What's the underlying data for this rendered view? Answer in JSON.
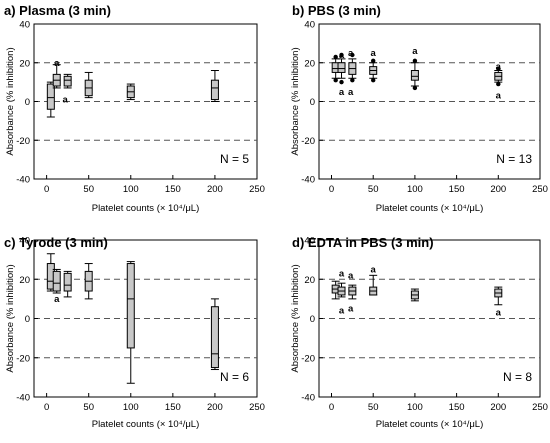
{
  "figure": {
    "panels": [
      {
        "id": "a",
        "title": "a) Plasma (3 min)",
        "n_label": "N = 5",
        "ylabel": "Absorbance (% inhibition)",
        "xlabel": "Platelet counts (× 10⁴/μL)",
        "letters": [
          {
            "x": 12,
            "y": 20,
            "text": "a"
          },
          {
            "x": 22,
            "y": 1,
            "text": "a"
          }
        ]
      },
      {
        "id": "b",
        "title": "b) PBS (3 min)",
        "n_label": "N = 13",
        "ylabel": "Absorbance (% inhibition)",
        "xlabel": "Platelet counts (× 10⁴/μL)",
        "letters": [
          {
            "x": 12,
            "y": 24,
            "text": "a"
          },
          {
            "x": 23,
            "y": 25,
            "text": "a"
          },
          {
            "x": 50,
            "y": 25,
            "text": "a"
          },
          {
            "x": 100,
            "y": 26,
            "text": "a"
          },
          {
            "x": 200,
            "y": 18,
            "text": "a"
          },
          {
            "x": 12,
            "y": 5,
            "text": "a"
          },
          {
            "x": 23,
            "y": 5,
            "text": "a"
          },
          {
            "x": 200,
            "y": 3,
            "text": "a"
          }
        ]
      },
      {
        "id": "c",
        "title": "c) Tyrode (3 min)",
        "n_label": "N = 6",
        "ylabel": "Absorbance (% inhibition)",
        "xlabel": "Platelet counts (× 10⁴/μL)",
        "letters": [
          {
            "x": 12,
            "y": 10,
            "text": "a"
          }
        ]
      },
      {
        "id": "d",
        "title": "d) EDTA in PBS (3 min)",
        "n_label": "N = 8",
        "ylabel": "Absorbance (% inhibition)",
        "xlabel": "Platelet counts (× 10⁴/μL)",
        "letters": [
          {
            "x": 12,
            "y": 23,
            "text": "a"
          },
          {
            "x": 23,
            "y": 22,
            "text": "a"
          },
          {
            "x": 50,
            "y": 25,
            "text": "a"
          },
          {
            "x": 12,
            "y": 4,
            "text": "a"
          },
          {
            "x": 23,
            "y": 5,
            "text": "a"
          },
          {
            "x": 200,
            "y": 3,
            "text": "a"
          }
        ]
      }
    ]
  },
  "chart_data": [
    {
      "type": "box",
      "title": "a) Plasma (3 min)",
      "xlabel": "Platelet counts (× 10⁴/μL)",
      "ylabel": "Absorbance (% inhibition)",
      "xlim": [
        -15,
        250
      ],
      "ylim": [
        -40,
        40
      ],
      "xticks": [
        0,
        50,
        100,
        150,
        200,
        250
      ],
      "yticks": [
        -40,
        -20,
        0,
        20,
        40
      ],
      "reference_lines": [
        20,
        0,
        -20
      ],
      "grid": false,
      "boxes": [
        {
          "x": 5,
          "whisker_low": -8,
          "q1": -4,
          "median": 2,
          "q3": 9,
          "whisker_high": 10
        },
        {
          "x": 12,
          "whisker_low": 7,
          "q1": 8,
          "median": 11,
          "q3": 14,
          "whisker_high": 19
        },
        {
          "x": 25,
          "whisker_low": 7,
          "q1": 8,
          "median": 11,
          "q3": 13,
          "whisker_high": 14
        },
        {
          "x": 50,
          "whisker_low": 2,
          "q1": 3,
          "median": 7,
          "q3": 11,
          "whisker_high": 15
        },
        {
          "x": 100,
          "whisker_low": 1,
          "q1": 2,
          "median": 5,
          "q3": 8,
          "whisker_high": 9
        },
        {
          "x": 200,
          "whisker_low": 0,
          "q1": 1,
          "median": 7,
          "q3": 11,
          "whisker_high": 16
        }
      ],
      "outliers": []
    },
    {
      "type": "box",
      "title": "b) PBS (3 min)",
      "xlabel": "Platelet counts (× 10⁴/μL)",
      "ylabel": "Absorbance (% inhibition)",
      "xlim": [
        -15,
        250
      ],
      "ylim": [
        -40,
        40
      ],
      "xticks": [
        0,
        50,
        100,
        150,
        200,
        250
      ],
      "yticks": [
        -40,
        -20,
        0,
        20,
        40
      ],
      "reference_lines": [
        20,
        0,
        -20
      ],
      "grid": false,
      "boxes": [
        {
          "x": 5,
          "whisker_low": 12,
          "q1": 15,
          "median": 17,
          "q3": 20,
          "whisker_high": 22
        },
        {
          "x": 12,
          "whisker_low": 12,
          "q1": 15,
          "median": 17,
          "q3": 20,
          "whisker_high": 22
        },
        {
          "x": 25,
          "whisker_low": 12,
          "q1": 14,
          "median": 17,
          "q3": 20,
          "whisker_high": 22
        },
        {
          "x": 50,
          "whisker_low": 12,
          "q1": 14,
          "median": 16,
          "q3": 18,
          "whisker_high": 20
        },
        {
          "x": 100,
          "whisker_low": 8,
          "q1": 11,
          "median": 13,
          "q3": 16,
          "whisker_high": 20
        },
        {
          "x": 200,
          "whisker_low": 10,
          "q1": 11,
          "median": 13,
          "q3": 15,
          "whisker_high": 16
        }
      ],
      "outliers": [
        {
          "x": 5,
          "y": 11
        },
        {
          "x": 5,
          "y": 23
        },
        {
          "x": 12,
          "y": 10
        },
        {
          "x": 12,
          "y": 24
        },
        {
          "x": 25,
          "y": 11
        },
        {
          "x": 25,
          "y": 24
        },
        {
          "x": 50,
          "y": 11
        },
        {
          "x": 50,
          "y": 21
        },
        {
          "x": 100,
          "y": 7
        },
        {
          "x": 100,
          "y": 21
        },
        {
          "x": 200,
          "y": 9
        },
        {
          "x": 200,
          "y": 17
        }
      ]
    },
    {
      "type": "box",
      "title": "c) Tyrode (3 min)",
      "xlabel": "Platelet counts (× 10⁴/μL)",
      "ylabel": "Absorbance (% inhibition)",
      "xlim": [
        -15,
        250
      ],
      "ylim": [
        -40,
        40
      ],
      "xticks": [
        0,
        50,
        100,
        150,
        200,
        250
      ],
      "yticks": [
        -40,
        -20,
        0,
        20,
        40
      ],
      "reference_lines": [
        20,
        0,
        -20
      ],
      "grid": false,
      "boxes": [
        {
          "x": 5,
          "whisker_low": 14,
          "q1": 15,
          "median": 19,
          "q3": 28,
          "whisker_high": 33
        },
        {
          "x": 12,
          "whisker_low": 13,
          "q1": 14,
          "median": 18,
          "q3": 24,
          "whisker_high": 25
        },
        {
          "x": 25,
          "whisker_low": 11,
          "q1": 14,
          "median": 17,
          "q3": 23,
          "whisker_high": 24
        },
        {
          "x": 50,
          "whisker_low": 10,
          "q1": 14,
          "median": 19,
          "q3": 24,
          "whisker_high": 28
        },
        {
          "x": 100,
          "whisker_low": -33,
          "q1": -15,
          "median": 10,
          "q3": 28,
          "whisker_high": 29
        },
        {
          "x": 200,
          "whisker_low": -26,
          "q1": -25,
          "median": -18,
          "q3": 6,
          "whisker_high": 10
        }
      ],
      "outliers": []
    },
    {
      "type": "box",
      "title": "d) EDTA in PBS (3 min)",
      "xlabel": "Platelet counts (× 10⁴/μL)",
      "ylabel": "Absorbance (% inhibition)",
      "xlim": [
        -15,
        250
      ],
      "ylim": [
        -40,
        40
      ],
      "xticks": [
        0,
        50,
        100,
        150,
        200,
        250
      ],
      "yticks": [
        -40,
        -20,
        0,
        20,
        40
      ],
      "reference_lines": [
        20,
        0,
        -20
      ],
      "grid": false,
      "boxes": [
        {
          "x": 5,
          "whisker_low": 10,
          "q1": 13,
          "median": 15,
          "q3": 17,
          "whisker_high": 19
        },
        {
          "x": 12,
          "whisker_low": 11,
          "q1": 12,
          "median": 14,
          "q3": 16,
          "whisker_high": 18
        },
        {
          "x": 25,
          "whisker_low": 10,
          "q1": 12,
          "median": 14,
          "q3": 16,
          "whisker_high": 17
        },
        {
          "x": 50,
          "whisker_low": 12,
          "q1": 12,
          "median": 14,
          "q3": 16,
          "whisker_high": 22
        },
        {
          "x": 100,
          "whisker_low": 9,
          "q1": 10,
          "median": 12,
          "q3": 14,
          "whisker_high": 15
        },
        {
          "x": 200,
          "whisker_low": 7,
          "q1": 11,
          "median": 13,
          "q3": 15,
          "whisker_high": 16
        }
      ],
      "outliers": []
    }
  ]
}
